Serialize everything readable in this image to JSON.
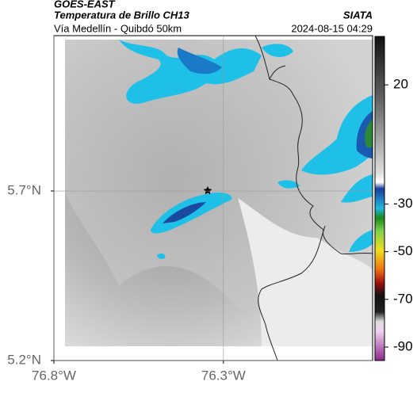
{
  "header": {
    "title": "GOES-EAST",
    "subtitle": "Temperatura de Brillo CH13",
    "route": "Vía Medellín - Quibdó 50km",
    "source": "SIATA",
    "timestamp": "2024-08-15 04:29"
  },
  "map": {
    "xlim": [
      -76.8,
      -75.86
    ],
    "xticks": [
      {
        "value": -76.8,
        "label": "76.8°W"
      },
      {
        "value": -76.3,
        "label": "76.3°W"
      }
    ],
    "ylim": [
      5.2,
      6.158
    ],
    "yticks": [
      {
        "value": 5.2,
        "label": "5.2°N"
      },
      {
        "value": 5.7,
        "label": "5.7°N"
      }
    ],
    "grid": true,
    "colorbar": {
      "lim": [
        40,
        -95
      ],
      "ticks": [
        20,
        -30,
        -50,
        -70,
        -90
      ]
    }
  }
}
